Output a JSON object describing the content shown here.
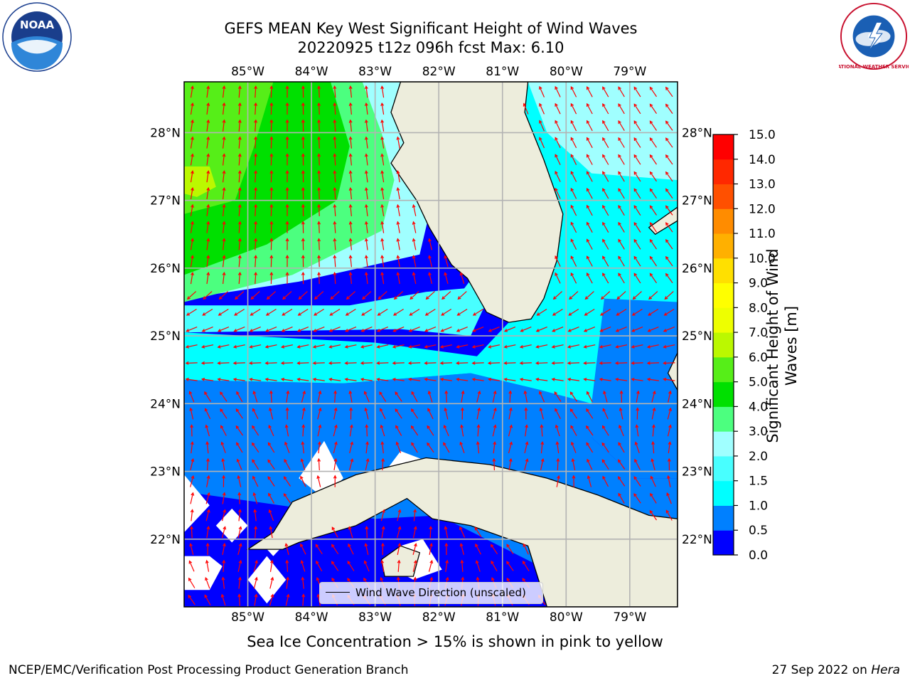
{
  "header": {
    "title_line1": "GEFS MEAN Key West Significant Height of Wind Waves",
    "title_line2": "20220925 t12z 096h fcst   Max: 6.10"
  },
  "map": {
    "lon_labels": [
      "85°W",
      "84°W",
      "83°W",
      "82°W",
      "81°W",
      "80°W",
      "79°W"
    ],
    "lat_labels": [
      "28°N",
      "27°N",
      "26°N",
      "25°N",
      "24°N",
      "23°N",
      "22°N"
    ],
    "lon_range": [
      -86.0,
      -78.25
    ],
    "lat_range": [
      21.0,
      28.75
    ],
    "land_color": "#ededdc",
    "arrow_color": "#ff0000",
    "legend_label": "Wind Wave Direction (unscaled)"
  },
  "colorbar": {
    "label": "Significant Height of Wind Waves [m]",
    "ticks": [
      "0.0",
      "0.5",
      "1.0",
      "1.5",
      "2.0",
      "3.0",
      "4.0",
      "5.0",
      "6.0",
      "7.0",
      "8.0",
      "9.0",
      "10.0",
      "11.0",
      "12.0",
      "13.0",
      "14.0",
      "15.0"
    ],
    "colors": [
      "#0000ff",
      "#0080ff",
      "#00ffff",
      "#48ffff",
      "#a0ffff",
      "#4cff7f",
      "#00e000",
      "#56ee18",
      "#bbf800",
      "#eeff00",
      "#ffff00",
      "#ffe000",
      "#ffb000",
      "#ff8c00",
      "#ff5000",
      "#ff2800",
      "#ff0000"
    ]
  },
  "footer": {
    "sea_ice_note": "Sea Ice Concentration > 15% is shown in pink to yellow",
    "left": "NCEP/EMC/Verification Post Processing Product Generation Branch",
    "right_date": "27 Sep 2022 on",
    "right_host": "Hera"
  },
  "logos": {
    "left": "NOAA",
    "right": "NATIONAL WEATHER SERVICE"
  }
}
